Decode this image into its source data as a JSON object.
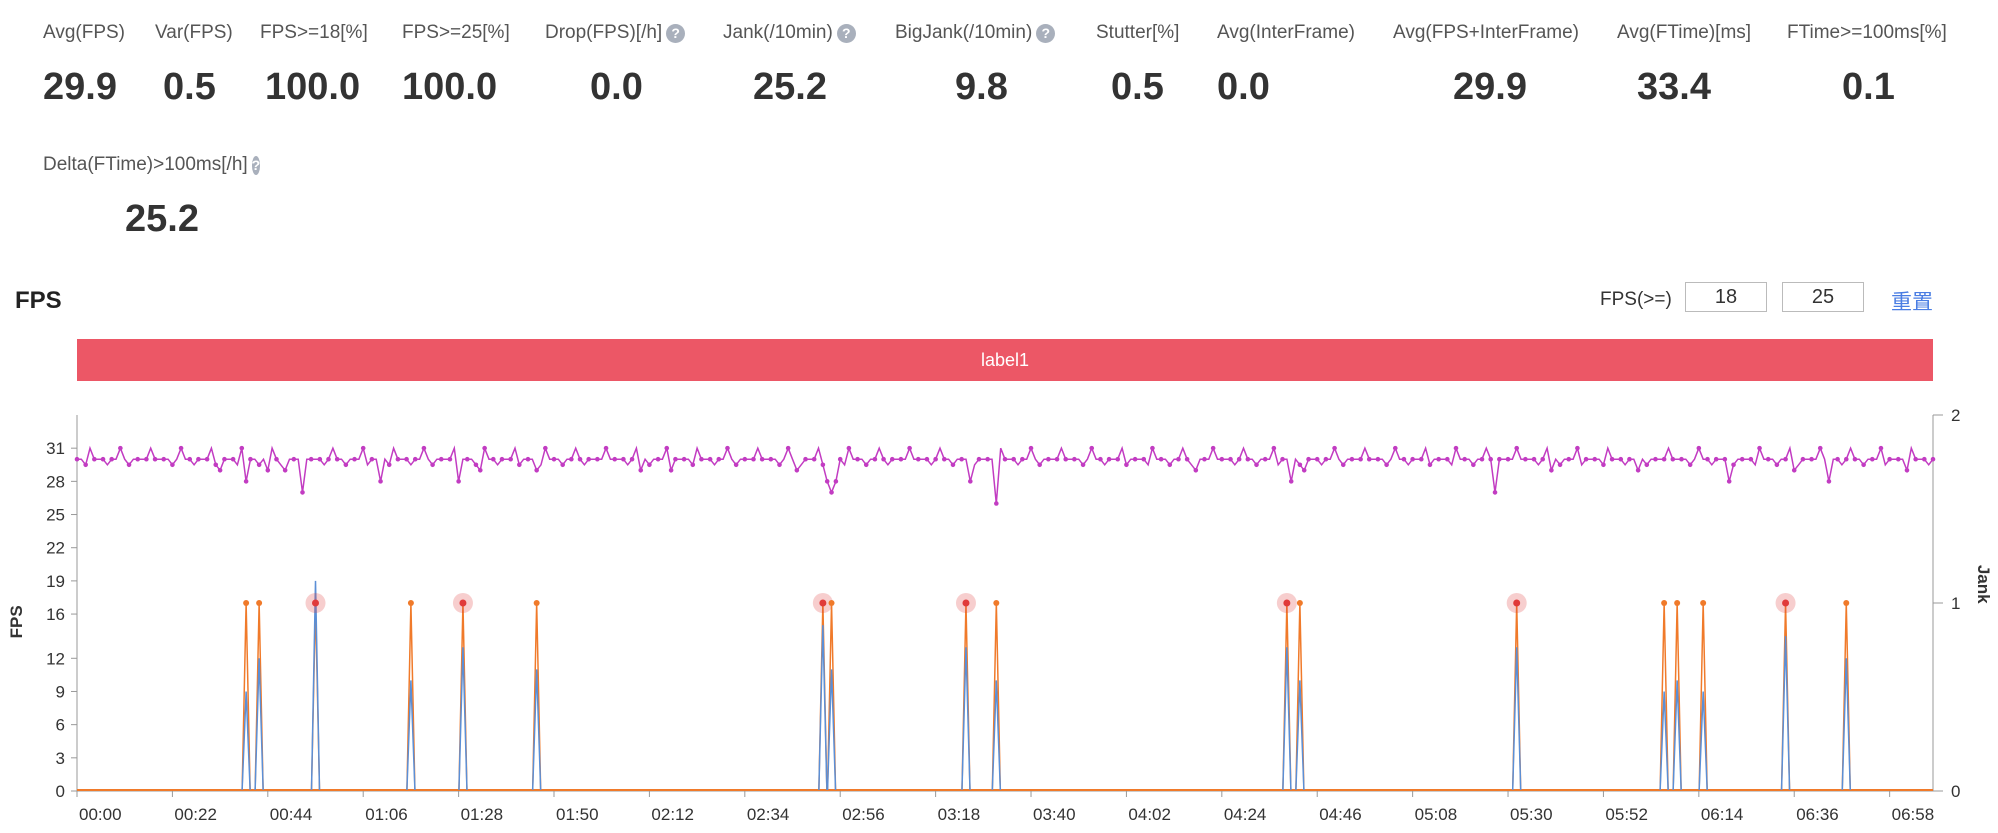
{
  "metrics_row1": [
    {
      "label": "Avg(FPS)",
      "value": "29.9",
      "help": false
    },
    {
      "label": "Var(FPS)",
      "value": "0.5",
      "help": false
    },
    {
      "label": "FPS>=18[%]",
      "value": "100.0",
      "help": false
    },
    {
      "label": "FPS>=25[%]",
      "value": "100.0",
      "help": false
    },
    {
      "label": "Drop(FPS)[/h]",
      "value": "0.0",
      "help": true
    },
    {
      "label": "Jank(/10min)",
      "value": "25.2",
      "help": true
    },
    {
      "label": "BigJank(/10min)",
      "value": "9.8",
      "help": true
    },
    {
      "label": "Stutter[%]",
      "value": "0.5",
      "help": false
    },
    {
      "label": "Avg(InterFrame)",
      "value": "0.0",
      "help": false
    },
    {
      "label": "Avg(FPS+InterFrame)",
      "value": "29.9",
      "help": false
    },
    {
      "label": "Avg(FTime)[ms]",
      "value": "33.4",
      "help": false
    },
    {
      "label": "FTime>=100ms[%]",
      "value": "0.1",
      "help": false
    }
  ],
  "metrics_row2": [
    {
      "label": "Delta(FTime)>100ms[/h]",
      "value": "25.2",
      "help": true
    }
  ],
  "help_glyph": "?",
  "section": {
    "title": "FPS"
  },
  "threshold": {
    "label": "FPS(>=)",
    "value1": "18",
    "value2": "25",
    "reset": "重置"
  },
  "label_band": {
    "text": "label1",
    "color": "#ec5766"
  },
  "colors": {
    "fps": "#c23cc2",
    "jank": "#f07a2a",
    "bigjank": "#5b8fd6",
    "highlight": "#e03a3a"
  },
  "chart_data": {
    "type": "line",
    "ylabel": "FPS",
    "y2label": "Jank",
    "ylim": [
      0,
      34
    ],
    "y_ticks": [
      0,
      3,
      6,
      9,
      12,
      16,
      19,
      22,
      25,
      28,
      31
    ],
    "y2lim": [
      0,
      2
    ],
    "y2_ticks": [
      0,
      1,
      2
    ],
    "x_ticks": [
      "00:00",
      "00:22",
      "00:44",
      "01:06",
      "01:28",
      "01:50",
      "02:12",
      "02:34",
      "02:56",
      "03:18",
      "03:40",
      "04:02",
      "04:24",
      "04:46",
      "05:08",
      "05:30",
      "05:52",
      "06:14",
      "06:36",
      "06:58"
    ],
    "duration_s": 428,
    "fps_baseline": 30,
    "fps_dips": [
      {
        "t": 33,
        "v": 29
      },
      {
        "t": 39,
        "v": 28
      },
      {
        "t": 44,
        "v": 29
      },
      {
        "t": 48,
        "v": 29
      },
      {
        "t": 52,
        "v": 27
      },
      {
        "t": 70,
        "v": 28
      },
      {
        "t": 88,
        "v": 28
      },
      {
        "t": 93,
        "v": 29
      },
      {
        "t": 106,
        "v": 29
      },
      {
        "t": 130,
        "v": 29
      },
      {
        "t": 137,
        "v": 29
      },
      {
        "t": 166,
        "v": 29
      },
      {
        "t": 173,
        "v": 28
      },
      {
        "t": 174,
        "v": 27
      },
      {
        "t": 175,
        "v": 28
      },
      {
        "t": 206,
        "v": 28
      },
      {
        "t": 212,
        "v": 26
      },
      {
        "t": 258,
        "v": 29
      },
      {
        "t": 280,
        "v": 28
      },
      {
        "t": 283,
        "v": 29
      },
      {
        "t": 327,
        "v": 27
      },
      {
        "t": 340,
        "v": 29
      },
      {
        "t": 360,
        "v": 29
      },
      {
        "t": 381,
        "v": 28
      },
      {
        "t": 396,
        "v": 29
      },
      {
        "t": 404,
        "v": 28
      },
      {
        "t": 422,
        "v": 29
      }
    ],
    "jank_events": [
      {
        "t": 39,
        "fps_drop": 9,
        "big": false
      },
      {
        "t": 42,
        "fps_drop": 12,
        "big": false
      },
      {
        "t": 55,
        "fps_drop": 19,
        "big": true
      },
      {
        "t": 77,
        "fps_drop": 10,
        "big": false
      },
      {
        "t": 89,
        "fps_drop": 13,
        "big": true
      },
      {
        "t": 106,
        "fps_drop": 11,
        "big": false
      },
      {
        "t": 172,
        "fps_drop": 15,
        "big": true
      },
      {
        "t": 174,
        "fps_drop": 11,
        "big": false
      },
      {
        "t": 205,
        "fps_drop": 13,
        "big": true
      },
      {
        "t": 212,
        "fps_drop": 10,
        "big": false
      },
      {
        "t": 279,
        "fps_drop": 13,
        "big": true
      },
      {
        "t": 282,
        "fps_drop": 10,
        "big": false
      },
      {
        "t": 332,
        "fps_drop": 13,
        "big": true
      },
      {
        "t": 366,
        "fps_drop": 9,
        "big": false
      },
      {
        "t": 369,
        "fps_drop": 10,
        "big": false
      },
      {
        "t": 375,
        "fps_drop": 9,
        "big": false
      },
      {
        "t": 394,
        "fps_drop": 14,
        "big": true
      },
      {
        "t": 408,
        "fps_drop": 12,
        "big": false
      }
    ]
  }
}
